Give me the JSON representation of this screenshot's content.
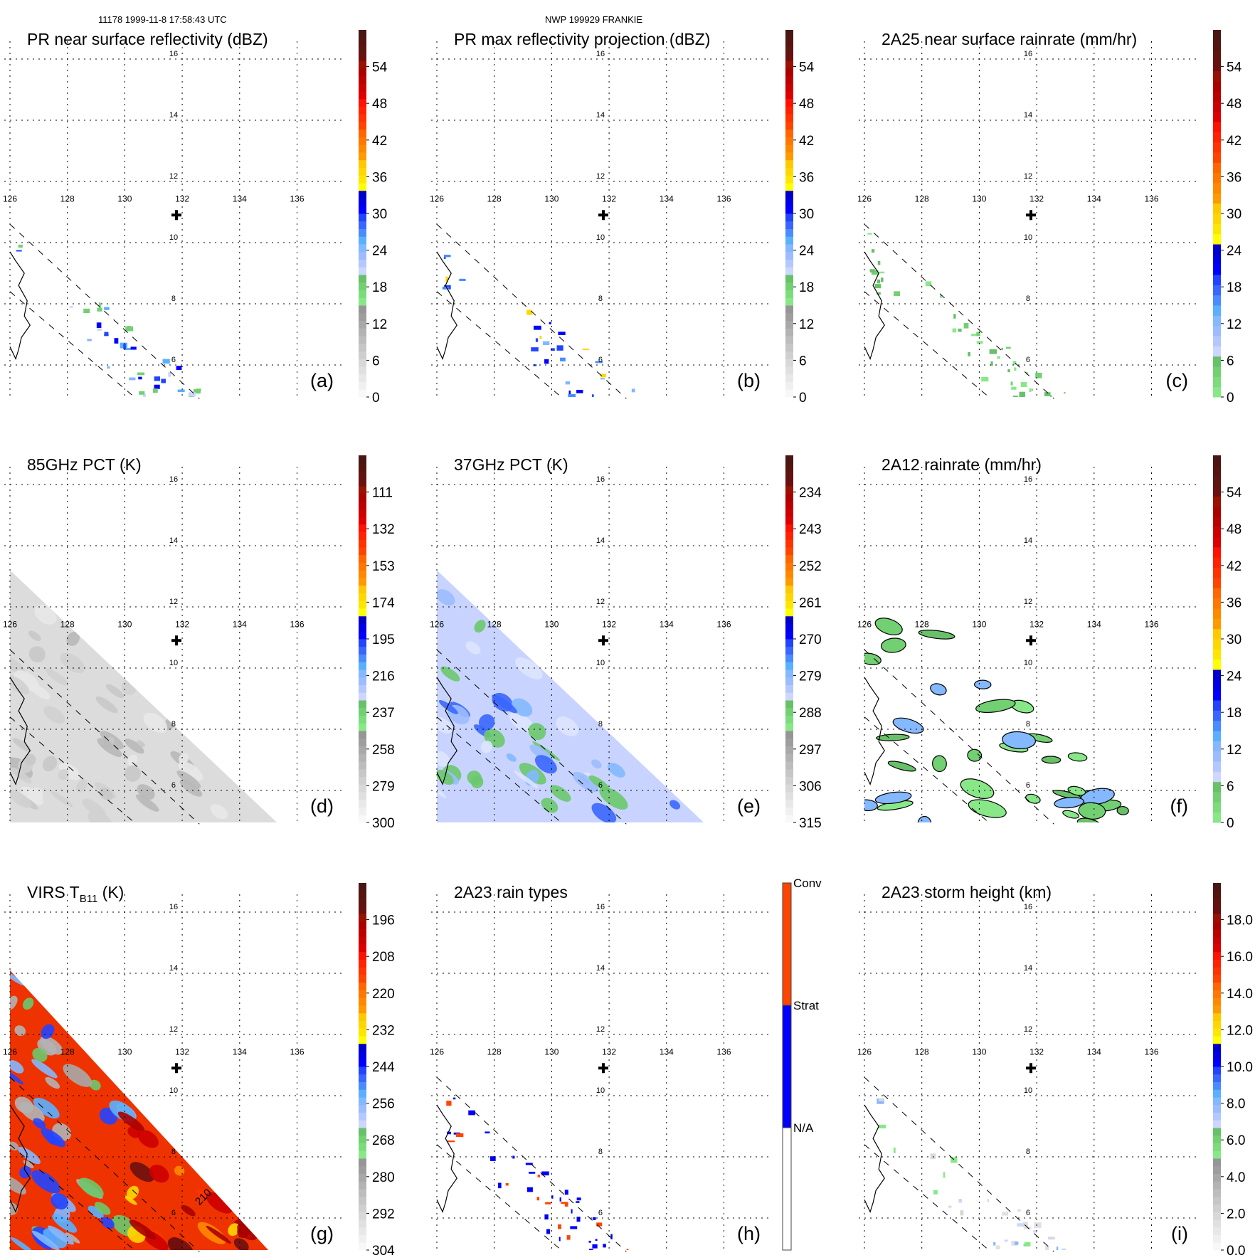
{
  "header": {
    "orbit_time": "11178 1999-11-8 17:58:43 UTC",
    "storm_id": "NWP 199929 FRANKIE"
  },
  "chart_data": [
    {
      "id": "a",
      "type": "heatmap",
      "title": "PR near surface reflectivity (dBZ)",
      "panel_label": "(a)",
      "x_ticks": [
        "126",
        "128",
        "130",
        "132",
        "134",
        "136"
      ],
      "y_ticks": [
        "16",
        "14",
        "12",
        "10",
        "8",
        "6"
      ],
      "xlim": [
        126,
        138.5
      ],
      "ylim": [
        4.8,
        16.8
      ],
      "grid": true,
      "storm_center": {
        "lon": 131.8,
        "lat": 10.9
      },
      "colorbar": {
        "ticks": [
          "54",
          "48",
          "42",
          "36",
          "30",
          "24",
          "18",
          "12",
          "6",
          "0"
        ],
        "vmin": 0,
        "vmax": 60,
        "scheme": "dbz"
      },
      "data_extent": "PR swath only, sparse light-to-moderate echoes (18-36 dBZ) between 5-10N, 126-132E",
      "footprint": "pr"
    },
    {
      "id": "b",
      "type": "heatmap",
      "title": "PR max reflectivity projection (dBZ)",
      "panel_label": "(b)",
      "x_ticks": [
        "126",
        "128",
        "130",
        "132",
        "134",
        "136"
      ],
      "y_ticks": [
        "16",
        "14",
        "12",
        "10",
        "8",
        "6"
      ],
      "xlim": [
        126,
        138.5
      ],
      "ylim": [
        4.8,
        16.8
      ],
      "grid": true,
      "storm_center": {
        "lon": 131.8,
        "lat": 10.9
      },
      "colorbar": {
        "ticks": [
          "54",
          "48",
          "42",
          "36",
          "30",
          "24",
          "18",
          "12",
          "6",
          "0"
        ],
        "vmin": 0,
        "vmax": 60,
        "scheme": "dbz"
      },
      "data_extent": "PR swath, contoured cells up to ~40 dBZ near 5-6N, 129-132E",
      "footprint": "pr"
    },
    {
      "id": "c",
      "type": "heatmap",
      "title": "2A25 near surface rainrate (mm/hr)",
      "panel_label": "(c)",
      "x_ticks": [
        "126",
        "128",
        "130",
        "132",
        "134",
        "136"
      ],
      "y_ticks": [
        "16",
        "14",
        "12",
        "10",
        "8",
        "6"
      ],
      "xlim": [
        126,
        138.5
      ],
      "ylim": [
        4.8,
        16.8
      ],
      "grid": true,
      "storm_center": {
        "lon": 131.8,
        "lat": 10.9
      },
      "colorbar": {
        "ticks": [
          "54",
          "48",
          "42",
          "36",
          "30",
          "24",
          "18",
          "12",
          "6",
          "0"
        ],
        "vmin": 0,
        "vmax": 60,
        "scheme": "rain"
      },
      "data_extent": "PR swath, light rain 0-6 mm/hr near 5-6N",
      "footprint": "pr"
    },
    {
      "id": "d",
      "type": "heatmap",
      "title": "85GHz PCT (K)",
      "panel_label": "(d)",
      "x_ticks": [
        "126",
        "128",
        "130",
        "132",
        "134",
        "136"
      ],
      "y_ticks": [
        "16",
        "14",
        "12",
        "10",
        "8",
        "6"
      ],
      "xlim": [
        126,
        138.5
      ],
      "ylim": [
        4.8,
        16.8
      ],
      "grid": true,
      "storm_center": {
        "lon": 131.8,
        "lat": 10.9
      },
      "colorbar": {
        "ticks": [
          "111",
          "132",
          "153",
          "174",
          "195",
          "216",
          "237",
          "258",
          "279",
          "300"
        ],
        "vmin": 90,
        "vmax": 300,
        "scheme": "tb_reverse"
      },
      "data_extent": "TMI swath, mostly 260-300 K with a few 230-240 K cells",
      "footprint": "tmi"
    },
    {
      "id": "e",
      "type": "heatmap",
      "title": "37GHz PCT (K)",
      "panel_label": "(e)",
      "x_ticks": [
        "126",
        "128",
        "130",
        "132",
        "134",
        "136"
      ],
      "y_ticks": [
        "16",
        "14",
        "12",
        "10",
        "8",
        "6"
      ],
      "xlim": [
        126,
        138.5
      ],
      "ylim": [
        4.8,
        16.8
      ],
      "grid": true,
      "storm_center": {
        "lon": 131.8,
        "lat": 10.9
      },
      "colorbar": {
        "ticks": [
          "234",
          "243",
          "252",
          "261",
          "270",
          "279",
          "288",
          "297",
          "306",
          "315"
        ],
        "vmin": 225,
        "vmax": 315,
        "scheme": "tb_reverse"
      },
      "data_extent": "TMI swath, mostly 275-290 K with depressions to ~260 K",
      "footprint": "tmi"
    },
    {
      "id": "f",
      "type": "heatmap",
      "title": "2A12 rainrate (mm/hr)",
      "panel_label": "(f)",
      "x_ticks": [
        "126",
        "128",
        "130",
        "132",
        "134",
        "136"
      ],
      "y_ticks": [
        "16",
        "14",
        "12",
        "10",
        "8",
        "6"
      ],
      "xlim": [
        126,
        138.5
      ],
      "ylim": [
        4.8,
        16.8
      ],
      "grid": true,
      "storm_center": {
        "lon": 131.8,
        "lat": 10.9
      },
      "colorbar": {
        "ticks": [
          "54",
          "48",
          "42",
          "36",
          "30",
          "24",
          "18",
          "12",
          "6",
          "0"
        ],
        "vmin": 0,
        "vmax": 60,
        "scheme": "rain"
      },
      "data_extent": "TMI swath, scattered light rain 0-12 mm/hr",
      "footprint": "tmi-sparse"
    },
    {
      "id": "g",
      "type": "heatmap",
      "title": "VIRS T",
      "title_subscript": "B11",
      "title_suffix": " (K)",
      "panel_label": "(g)",
      "contour_label": "210",
      "x_ticks": [
        "126",
        "128",
        "130",
        "132",
        "134",
        "136"
      ],
      "y_ticks": [
        "16",
        "14",
        "12",
        "10",
        "8",
        "6"
      ],
      "xlim": [
        126,
        138.5
      ],
      "ylim": [
        4.8,
        16.8
      ],
      "grid": true,
      "storm_center": {
        "lon": 131.8,
        "lat": 10.9
      },
      "colorbar": {
        "ticks": [
          "196",
          "208",
          "220",
          "232",
          "244",
          "256",
          "268",
          "280",
          "292",
          "304"
        ],
        "vmin": 184,
        "vmax": 304,
        "scheme": "tb_reverse"
      },
      "data_extent": "VIRS swath, cold cloud tops 190-230 K east, 250-280 K west",
      "footprint": "virs"
    },
    {
      "id": "h",
      "type": "heatmap",
      "title": "2A23 rain types",
      "panel_label": "(h)",
      "x_ticks": [
        "126",
        "128",
        "130",
        "132",
        "134",
        "136"
      ],
      "y_ticks": [
        "16",
        "14",
        "12",
        "10",
        "8",
        "6"
      ],
      "xlim": [
        126,
        138.5
      ],
      "ylim": [
        4.8,
        16.8
      ],
      "grid": true,
      "storm_center": {
        "lon": 131.8,
        "lat": 10.9
      },
      "colorbar": {
        "categories": [
          "Conv",
          "Strat",
          "N/A"
        ],
        "colors": [
          "#ff4400",
          "#0000ff",
          "#ffffff"
        ],
        "scheme": "categorical"
      },
      "data_extent": "PR swath, mostly stratiform with isolated convective pixels",
      "footprint": "pr-strat"
    },
    {
      "id": "i",
      "type": "heatmap",
      "title": "2A23 storm height (km)",
      "panel_label": "(i)",
      "x_ticks": [
        "126",
        "128",
        "130",
        "132",
        "134",
        "136"
      ],
      "y_ticks": [
        "16",
        "14",
        "12",
        "10",
        "8",
        "6"
      ],
      "xlim": [
        126,
        138.5
      ],
      "ylim": [
        4.8,
        16.8
      ],
      "grid": true,
      "storm_center": {
        "lon": 131.8,
        "lat": 10.9
      },
      "colorbar": {
        "ticks": [
          "18.0",
          "16.0",
          "14.0",
          "12.0",
          "10.0",
          "8.0",
          "6.0",
          "4.0",
          "2.0",
          "0.0"
        ],
        "vmin": 0,
        "vmax": 20,
        "scheme": "height"
      },
      "data_extent": "PR swath, storm heights mostly 4-8 km",
      "footprint": "pr-light"
    }
  ]
}
